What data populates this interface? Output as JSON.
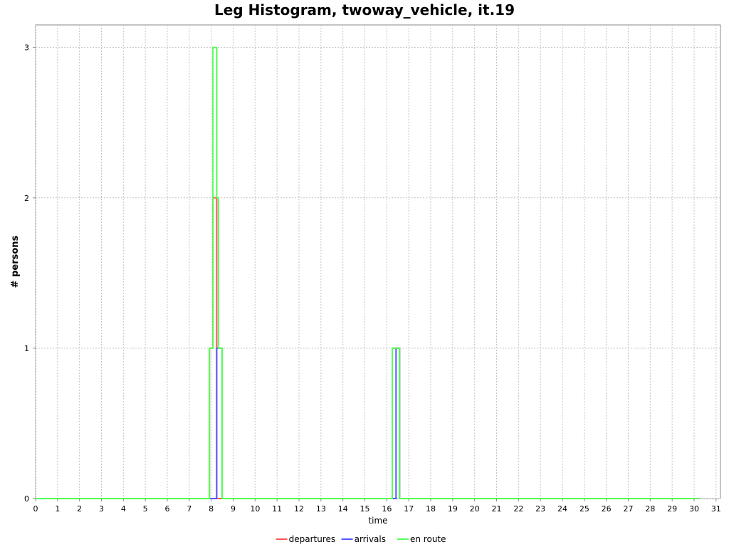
{
  "chart_data": {
    "type": "line",
    "step": true,
    "title": "Leg Histogram, twoway_vehicle, it.19",
    "xlabel": "time",
    "ylabel": "# persons",
    "xlim": [
      0,
      31.2
    ],
    "ylim": [
      0,
      3.15
    ],
    "x_ticks": [
      0,
      1,
      2,
      3,
      4,
      5,
      6,
      7,
      8,
      9,
      10,
      11,
      12,
      13,
      14,
      15,
      16,
      17,
      18,
      19,
      20,
      21,
      22,
      23,
      24,
      25,
      26,
      27,
      28,
      29,
      30,
      31
    ],
    "y_ticks": [
      0,
      1,
      2,
      3
    ],
    "grid": true,
    "legend_position": "bottom",
    "series": [
      {
        "name": "departures",
        "color": "#ff5555",
        "points": [
          [
            0,
            0
          ],
          [
            7.92,
            0
          ],
          [
            7.92,
            1
          ],
          [
            8.08,
            1
          ],
          [
            8.08,
            2
          ],
          [
            8.25,
            2
          ],
          [
            8.25,
            0
          ],
          [
            16.25,
            0
          ],
          [
            16.25,
            1
          ],
          [
            16.58,
            1
          ],
          [
            16.58,
            0
          ],
          [
            30.25,
            0
          ]
        ]
      },
      {
        "name": "arrivals",
        "color": "#5555ff",
        "points": [
          [
            0,
            0
          ],
          [
            8.25,
            0
          ],
          [
            8.25,
            1
          ],
          [
            8.5,
            1
          ],
          [
            8.5,
            0
          ],
          [
            16.42,
            0
          ],
          [
            16.42,
            1
          ],
          [
            16.58,
            1
          ],
          [
            16.58,
            0
          ],
          [
            30.25,
            0
          ]
        ]
      },
      {
        "name": "en route",
        "color": "#55ff55",
        "points": [
          [
            0,
            0
          ],
          [
            7.92,
            0
          ],
          [
            7.92,
            1
          ],
          [
            8.08,
            1
          ],
          [
            8.08,
            3
          ],
          [
            8.25,
            3
          ],
          [
            8.25,
            2
          ],
          [
            8.33,
            2
          ],
          [
            8.33,
            1
          ],
          [
            8.5,
            1
          ],
          [
            8.5,
            0
          ],
          [
            16.25,
            0
          ],
          [
            16.25,
            1
          ],
          [
            16.58,
            1
          ],
          [
            16.58,
            0
          ],
          [
            30.25,
            0
          ]
        ]
      }
    ]
  }
}
